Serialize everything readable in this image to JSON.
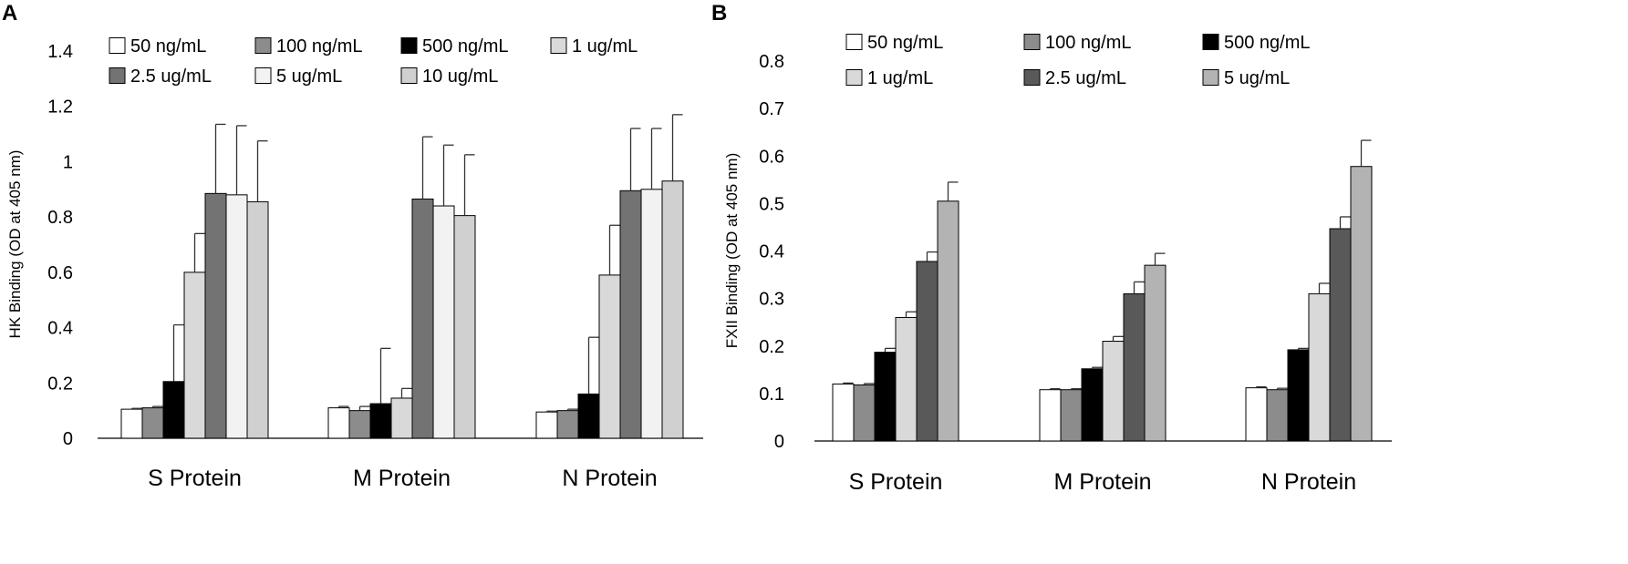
{
  "chart_data": [
    {
      "id": "A",
      "panel_label": "A",
      "type": "bar",
      "title": "",
      "xlabel": "",
      "ylabel": "HK Binding (OD at 405 nm)",
      "ylim": [
        0,
        1.4
      ],
      "yticks": [
        0,
        0.2,
        0.4,
        0.6,
        0.8,
        1,
        1.2,
        1.4
      ],
      "ytick_labels": [
        "0",
        "0.2",
        "0.4",
        "0.6",
        "0.8",
        "1",
        "1.2",
        "1.4"
      ],
      "grid": false,
      "legend_position": "top",
      "categories": [
        "S Protein",
        "M Protein",
        "N Protein"
      ],
      "series": [
        {
          "name": "50 ng/mL",
          "color": "#ffffff",
          "values": [
            0.105,
            0.11,
            0.095
          ],
          "errors": [
            0.003,
            0.005,
            0.003
          ]
        },
        {
          "name": "100 ng/mL",
          "color": "#8c8c8c",
          "values": [
            0.11,
            0.1,
            0.1
          ],
          "errors": [
            0.005,
            0.015,
            0.005
          ]
        },
        {
          "name": "500 ng/mL",
          "color": "#000000",
          "values": [
            0.205,
            0.125,
            0.16
          ],
          "errors": [
            0.205,
            0.2,
            0.205
          ]
        },
        {
          "name": "1 ug/mL",
          "color": "#d9d9d9",
          "values": [
            0.6,
            0.145,
            0.59
          ],
          "errors": [
            0.14,
            0.035,
            0.18
          ]
        },
        {
          "name": "2.5 ug/mL",
          "color": "#737373",
          "values": [
            0.885,
            0.865,
            0.895
          ],
          "errors": [
            0.25,
            0.225,
            0.225
          ]
        },
        {
          "name": "5 ug/mL",
          "color": "#f2f2f2",
          "values": [
            0.88,
            0.84,
            0.9
          ],
          "errors": [
            0.25,
            0.22,
            0.22
          ]
        },
        {
          "name": "10 ug/mL",
          "color": "#d0d0d0",
          "values": [
            0.855,
            0.805,
            0.93
          ],
          "errors": [
            0.22,
            0.22,
            0.24
          ]
        }
      ]
    },
    {
      "id": "B",
      "panel_label": "B",
      "type": "bar",
      "title": "",
      "xlabel": "",
      "ylabel": "FXII Binding (OD at 405 nm)",
      "ylim": [
        0,
        0.8
      ],
      "yticks": [
        0,
        0.1,
        0.2,
        0.3,
        0.4,
        0.5,
        0.6,
        0.7,
        0.8
      ],
      "ytick_labels": [
        "0",
        "0.1",
        "0.2",
        "0.3",
        "0.4",
        "0.5",
        "0.6",
        "0.7",
        "0.8"
      ],
      "grid": false,
      "legend_position": "top",
      "categories": [
        "S Protein",
        "M Protein",
        "N Protein"
      ],
      "series": [
        {
          "name": "50 ng/mL",
          "color": "#ffffff",
          "values": [
            0.12,
            0.108,
            0.112
          ],
          "errors": [
            0.002,
            0.002,
            0.002
          ]
        },
        {
          "name": "100 ng/mL",
          "color": "#8c8c8c",
          "values": [
            0.118,
            0.108,
            0.108
          ],
          "errors": [
            0.003,
            0.002,
            0.003
          ]
        },
        {
          "name": "500 ng/mL",
          "color": "#000000",
          "values": [
            0.187,
            0.152,
            0.192
          ],
          "errors": [
            0.008,
            0.003,
            0.003
          ]
        },
        {
          "name": "1 ug/mL",
          "color": "#d9d9d9",
          "values": [
            0.26,
            0.21,
            0.31
          ],
          "errors": [
            0.012,
            0.01,
            0.022
          ]
        },
        {
          "name": "2.5 ug/mL",
          "color": "#595959",
          "values": [
            0.378,
            0.31,
            0.447
          ],
          "errors": [
            0.02,
            0.025,
            0.025
          ]
        },
        {
          "name": "5 ug/mL",
          "color": "#b3b3b3",
          "values": [
            0.505,
            0.37,
            0.578
          ],
          "errors": [
            0.04,
            0.025,
            0.055
          ]
        }
      ]
    }
  ]
}
